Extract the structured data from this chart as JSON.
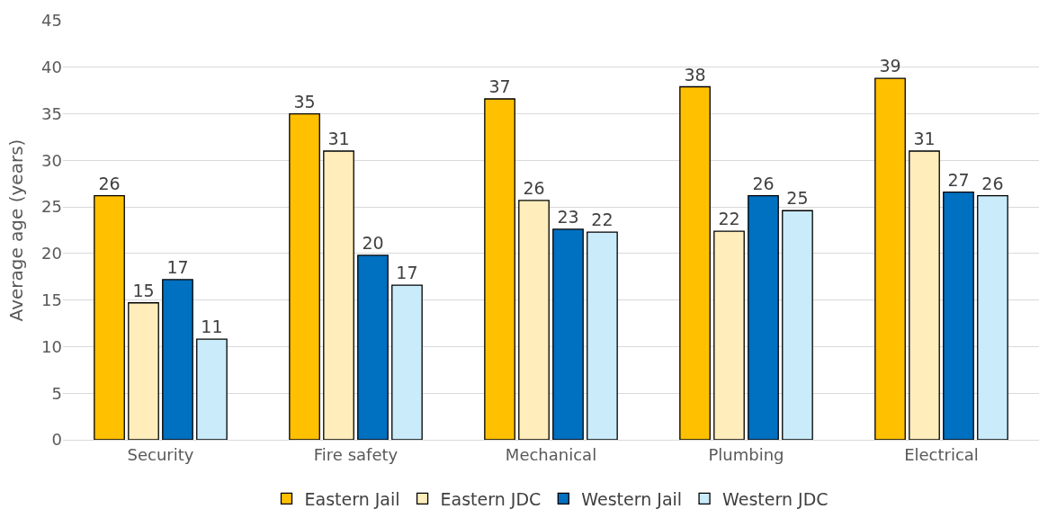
{
  "chart_data": {
    "type": "bar",
    "ylabel": "Average age (years)",
    "categories": [
      "Security",
      "Fire safety",
      "Mechanical",
      "Plumbing",
      "Electrical"
    ],
    "series": [
      {
        "name": "Eastern Jail",
        "color": "#ffc000",
        "values": [
          26.2,
          35.0,
          36.6,
          37.9,
          38.8
        ],
        "value_labels": [
          "26",
          "35",
          "37",
          "38",
          "39"
        ]
      },
      {
        "name": "Eastern JDC",
        "color": "#ffeebc",
        "values": [
          14.7,
          31.0,
          25.7,
          22.4,
          31.0
        ],
        "value_labels": [
          "15",
          "31",
          "26",
          "22",
          "31"
        ]
      },
      {
        "name": "Western Jail",
        "color": "#0070c0",
        "values": [
          17.2,
          19.8,
          22.6,
          26.2,
          26.6
        ],
        "value_labels": [
          "17",
          "20",
          "23",
          "26",
          "27"
        ]
      },
      {
        "name": "Western JDC",
        "color": "#c9ebfa",
        "values": [
          10.8,
          16.6,
          22.3,
          24.6,
          26.2
        ],
        "value_labels": [
          "11",
          "17",
          "22",
          "25",
          "26"
        ]
      }
    ],
    "ylim": [
      0,
      45
    ],
    "yticks": [
      0,
      5,
      10,
      15,
      20,
      25,
      30,
      35,
      40,
      45
    ],
    "grid": "y",
    "legend": "bottom"
  }
}
